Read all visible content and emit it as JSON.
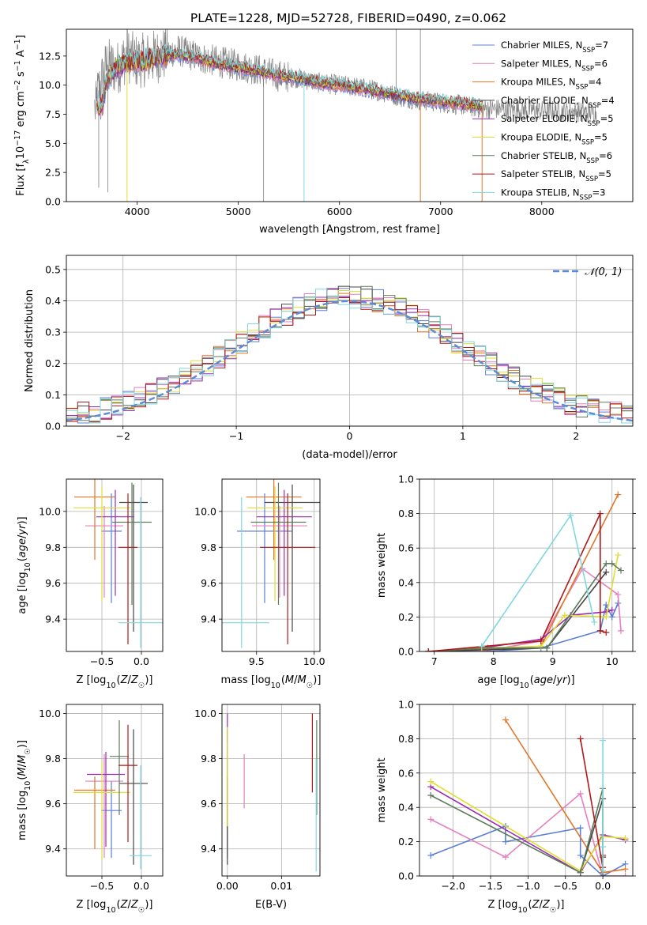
{
  "figure": {
    "title": "PLATE=1228, MJD=52728, FIBERID=0490, z=0.062"
  },
  "models": [
    {
      "name": "Chabrier MILES",
      "n_ssp": "7",
      "color": "#5b7fd6"
    },
    {
      "name": "Salpeter MILES",
      "n_ssp": "6",
      "color": "#e67fbf"
    },
    {
      "name": "Kroupa MILES",
      "n_ssp": "4",
      "color": "#e0772a"
    },
    {
      "name": "Chabrier ELODIE",
      "n_ssp": "4",
      "color": "#454545"
    },
    {
      "name": "Salpeter ELODIE",
      "n_ssp": "5",
      "color": "#9b2bb0"
    },
    {
      "name": "Kroupa ELODIE",
      "n_ssp": "5",
      "color": "#dede30"
    },
    {
      "name": "Chabrier STELIB",
      "n_ssp": "6",
      "color": "#5d7b5b"
    },
    {
      "name": "Salpeter STELIB",
      "n_ssp": "5",
      "color": "#b01818"
    },
    {
      "name": "Kroupa STELIB",
      "n_ssp": "3",
      "color": "#7fd8de"
    }
  ],
  "legend_nssp_prefix": "N",
  "legend_nssp_sub": "SSP",
  "chart_data": [
    {
      "id": "spectrum",
      "type": "line",
      "xlabel": "wavelength [Angstrom, rest frame]",
      "ylabel_parts": [
        "Flux [f",
        "λ",
        "10",
        "−17",
        " erg cm",
        "−2",
        " s",
        "−1",
        " A",
        "−1",
        "]"
      ],
      "xlim": [
        3300,
        8900
      ],
      "ylim": [
        0,
        14.8
      ],
      "xticks": [
        4000,
        5000,
        6000,
        7000,
        8000
      ],
      "yticks": [
        0.0,
        2.5,
        5.0,
        7.5,
        10.0,
        12.5
      ],
      "data_color": "#808080",
      "data_anchors": [
        [
          3600,
          9.0
        ],
        [
          3700,
          11.8
        ],
        [
          3800,
          11.4
        ],
        [
          3900,
          12.6
        ],
        [
          4000,
          12.0
        ],
        [
          4200,
          12.5
        ],
        [
          4400,
          13.0
        ],
        [
          4600,
          12.4
        ],
        [
          4800,
          12.0
        ],
        [
          5000,
          11.7
        ],
        [
          5200,
          11.3
        ],
        [
          5400,
          10.8
        ],
        [
          5600,
          10.6
        ],
        [
          5800,
          10.2
        ],
        [
          6000,
          10.0
        ],
        [
          6200,
          9.8
        ],
        [
          6400,
          9.5
        ],
        [
          6600,
          9.0
        ],
        [
          6800,
          8.7
        ],
        [
          7000,
          8.5
        ],
        [
          7200,
          8.3
        ],
        [
          7400,
          8.0
        ]
      ],
      "model_anchors": [
        [
          3600,
          8.5
        ],
        [
          3650,
          8.0
        ],
        [
          3700,
          10.5
        ],
        [
          3800,
          11.5
        ],
        [
          3900,
          12.0
        ],
        [
          4000,
          12.0
        ],
        [
          4200,
          12.4
        ],
        [
          4400,
          12.6
        ],
        [
          4600,
          12.3
        ],
        [
          4800,
          11.8
        ],
        [
          5000,
          11.5
        ],
        [
          5200,
          11.2
        ],
        [
          5400,
          10.8
        ],
        [
          5600,
          10.6
        ],
        [
          5800,
          10.2
        ],
        [
          6000,
          10.0
        ],
        [
          6200,
          9.7
        ],
        [
          6400,
          9.4
        ],
        [
          6600,
          9.1
        ],
        [
          6800,
          8.8
        ],
        [
          7000,
          8.6
        ],
        [
          7200,
          8.4
        ],
        [
          7400,
          8.2
        ]
      ],
      "data_xrange": [
        3580,
        8550
      ],
      "model_xrange": [
        3600,
        7420
      ]
    },
    {
      "id": "residual_histogram",
      "type": "histogram",
      "xlabel": "(data-model)/error",
      "ylabel": "Normed distribution",
      "xlim": [
        -2.5,
        2.5
      ],
      "ylim": [
        0,
        0.545
      ],
      "xticks": [
        -2,
        -1,
        0,
        1,
        2
      ],
      "yticks": [
        0.0,
        0.1,
        0.2,
        0.3,
        0.4,
        0.5
      ],
      "bin_edges_start": -2.5,
      "bin_width": 0.1,
      "reference_label": "𝒩(0, 1)",
      "reference_color": "#5b8ad6"
    },
    {
      "id": "age_vs_Z",
      "type": "errorbar",
      "xlabel": "Z [log10(Z/Z☉)]",
      "ylabel": "age  [log10(age/yr)]",
      "xlim": [
        -0.95,
        0.27
      ],
      "ylim": [
        9.22,
        10.18
      ],
      "xticks": [
        -0.5,
        0.0
      ],
      "yticks": [
        9.4,
        9.6,
        9.8,
        10.0
      ],
      "points": [
        {
          "model": 0,
          "x": -0.38,
          "y": 9.89,
          "xerr": [
            0.13,
            0.13
          ],
          "yerr": [
            0.4,
            0.21
          ]
        },
        {
          "model": 1,
          "x": -0.47,
          "y": 9.92,
          "xerr": [
            0.24,
            0.24
          ],
          "yerr": [
            0.4,
            0.11
          ]
        },
        {
          "model": 2,
          "x": -0.59,
          "y": 10.08,
          "xerr": [
            0.26,
            0.26
          ],
          "yerr": [
            0.35,
            0.1
          ]
        },
        {
          "model": 3,
          "x": -0.1,
          "y": 10.05,
          "xerr": [
            0.18,
            0.18
          ],
          "yerr": [
            0.72,
            0.1
          ]
        },
        {
          "model": 4,
          "x": -0.33,
          "y": 9.97,
          "xerr": [
            0.24,
            0.24
          ],
          "yerr": [
            0.44,
            0.15
          ]
        },
        {
          "model": 5,
          "x": -0.5,
          "y": 10.02,
          "xerr": [
            0.36,
            0.36
          ],
          "yerr": [
            0.52,
            0.12
          ]
        },
        {
          "model": 6,
          "x": -0.12,
          "y": 9.94,
          "xerr": [
            0.25,
            0.25
          ],
          "yerr": [
            0.46,
            0.22
          ]
        },
        {
          "model": 7,
          "x": -0.17,
          "y": 9.8,
          "xerr": [
            0.12,
            0.12
          ],
          "yerr": [
            0.54,
            0.3
          ]
        },
        {
          "model": 8,
          "x": -0.01,
          "y": 9.38,
          "xerr": [
            0.28,
            0.28
          ],
          "yerr": [
            0.14,
            0.7
          ]
        }
      ]
    },
    {
      "id": "age_vs_mass",
      "type": "errorbar",
      "xlabel": "mass [log10(M/M☉)]",
      "ylabel": "",
      "xlim": [
        9.2,
        10.05
      ],
      "ylim": [
        9.22,
        10.18
      ],
      "xticks": [
        9.5,
        10.0
      ],
      "yticks": [
        9.4,
        9.6,
        9.8,
        10.0
      ],
      "points": [
        {
          "model": 0,
          "x": 9.57,
          "y": 9.89,
          "xerr": [
            0.24,
            0.24
          ],
          "yerr": [
            0.4,
            0.21
          ]
        },
        {
          "model": 1,
          "x": 9.7,
          "y": 9.92,
          "xerr": [
            0.24,
            0.24
          ],
          "yerr": [
            0.4,
            0.11
          ]
        },
        {
          "model": 2,
          "x": 9.65,
          "y": 10.08,
          "xerr": [
            0.24,
            0.24
          ],
          "yerr": [
            0.35,
            0.1
          ]
        },
        {
          "model": 3,
          "x": 9.81,
          "y": 10.05,
          "xerr": [
            0.24,
            0.24
          ],
          "yerr": [
            0.72,
            0.1
          ]
        },
        {
          "model": 4,
          "x": 9.74,
          "y": 9.97,
          "xerr": [
            0.24,
            0.24
          ],
          "yerr": [
            0.44,
            0.15
          ]
        },
        {
          "model": 5,
          "x": 9.66,
          "y": 10.02,
          "xerr": [
            0.24,
            0.24
          ],
          "yerr": [
            0.52,
            0.12
          ]
        },
        {
          "model": 6,
          "x": 9.69,
          "y": 9.94,
          "xerr": [
            0.24,
            0.24
          ],
          "yerr": [
            0.46,
            0.22
          ]
        },
        {
          "model": 7,
          "x": 9.77,
          "y": 9.8,
          "xerr": [
            0.24,
            0.24
          ],
          "yerr": [
            0.54,
            0.3
          ]
        },
        {
          "model": 8,
          "x": 9.37,
          "y": 9.38,
          "xerr": [
            0.24,
            0.24
          ],
          "yerr": [
            0.14,
            0.7
          ]
        }
      ]
    },
    {
      "id": "massweight_vs_age",
      "type": "line",
      "xlabel": "age  [log10(age/yr)]",
      "ylabel": "mass weight",
      "xlim": [
        6.75,
        10.35
      ],
      "ylim": [
        0,
        1.0
      ],
      "xticks": [
        7,
        8,
        9,
        10
      ],
      "yticks": [
        0.0,
        0.2,
        0.4,
        0.6,
        0.8,
        1.0
      ],
      "series": [
        {
          "model": 0,
          "x": [
            6.9,
            7.9,
            8.8,
            9.8,
            9.9,
            10.0,
            10.1
          ],
          "y": [
            0.0,
            0.0,
            0.02,
            0.12,
            0.27,
            0.2,
            0.28
          ]
        },
        {
          "model": 1,
          "x": [
            6.9,
            7.8,
            8.8,
            9.5,
            10.1,
            10.15
          ],
          "y": [
            0.0,
            0.0,
            0.06,
            0.48,
            0.33,
            0.12
          ]
        },
        {
          "model": 2,
          "x": [
            6.9,
            8.8,
            10.1
          ],
          "y": [
            0.0,
            0.03,
            0.91
          ]
        },
        {
          "model": 3,
          "x": [
            6.9,
            8.9,
            9.9
          ],
          "y": [
            0.0,
            0.02,
            0.46
          ]
        },
        {
          "model": 4,
          "x": [
            6.9,
            7.8,
            8.8,
            9.3,
            9.9,
            10.0
          ],
          "y": [
            0.0,
            0.02,
            0.07,
            0.21,
            0.23,
            0.24
          ]
        },
        {
          "model": 5,
          "x": [
            6.9,
            7.8,
            8.8,
            9.2,
            9.9,
            10.1
          ],
          "y": [
            0.0,
            0.02,
            0.03,
            0.21,
            0.2,
            0.56
          ]
        },
        {
          "model": 6,
          "x": [
            6.9,
            7.9,
            8.9,
            9.9,
            10.0,
            10.15
          ],
          "y": [
            0.0,
            0.02,
            0.02,
            0.51,
            0.51,
            0.47
          ]
        },
        {
          "model": 7,
          "x": [
            6.9,
            8.8,
            9.8,
            9.8,
            9.9
          ],
          "y": [
            0.0,
            0.06,
            0.8,
            0.12,
            0.11
          ]
        },
        {
          "model": 8,
          "x": [
            7.8,
            9.3,
            9.7
          ],
          "y": [
            0.03,
            0.79,
            0.17
          ]
        }
      ]
    },
    {
      "id": "mass_vs_Z",
      "type": "errorbar",
      "xlabel": "Z [log10(Z/Z☉)]",
      "ylabel": "mass [log10(M/M☉)]",
      "xlim": [
        -0.95,
        0.27
      ],
      "ylim": [
        9.28,
        10.04
      ],
      "xticks": [
        -0.5,
        0.0
      ],
      "yticks": [
        9.4,
        9.6,
        9.8,
        10.0
      ],
      "points": [
        {
          "model": 0,
          "x": -0.38,
          "y": 9.57,
          "xerr": [
            0.13,
            0.13
          ],
          "yerr": [
            0.21,
            0.13
          ]
        },
        {
          "model": 1,
          "x": -0.47,
          "y": 9.7,
          "xerr": [
            0.24,
            0.24
          ],
          "yerr": [
            0.34,
            0.12
          ]
        },
        {
          "model": 2,
          "x": -0.59,
          "y": 9.66,
          "xerr": [
            0.26,
            0.26
          ],
          "yerr": [
            0.26,
            0.06
          ]
        },
        {
          "model": 3,
          "x": -0.1,
          "y": 9.69,
          "xerr": [
            0.18,
            0.18
          ],
          "yerr": [
            0.36,
            0.24
          ]
        },
        {
          "model": 4,
          "x": -0.45,
          "y": 9.73,
          "xerr": [
            0.24,
            0.24
          ],
          "yerr": [
            0.32,
            0.1
          ]
        },
        {
          "model": 5,
          "x": -0.5,
          "y": 9.65,
          "xerr": [
            0.36,
            0.36
          ],
          "yerr": [
            0.3,
            0.14
          ]
        },
        {
          "model": 6,
          "x": -0.28,
          "y": 9.81,
          "xerr": [
            0.12,
            0.12
          ],
          "yerr": [
            0.26,
            0.16
          ]
        },
        {
          "model": 7,
          "x": -0.17,
          "y": 9.77,
          "xerr": [
            0.12,
            0.12
          ],
          "yerr": [
            0.34,
            0.18
          ]
        },
        {
          "model": 8,
          "x": -0.01,
          "y": 9.37,
          "xerr": [
            0.14,
            0.14
          ],
          "yerr": [
            0.06,
            0.4
          ]
        }
      ]
    },
    {
      "id": "mass_vs_EBV",
      "type": "errorbar",
      "xlabel": "E(B-V)",
      "ylabel": "",
      "xlim": [
        -0.001,
        0.0171
      ],
      "ylim": [
        9.28,
        10.04
      ],
      "xticks": [
        0.0,
        0.01
      ],
      "yticks": [
        9.4,
        9.6,
        9.8,
        10.0
      ],
      "points": [
        {
          "model": 0,
          "x": 0.0,
          "y": 9.57,
          "xerr": [
            0,
            0
          ],
          "yerr": [
            0.21,
            0.13
          ]
        },
        {
          "model": 1,
          "x": 0.0031,
          "y": 9.7,
          "xerr": [
            0,
            0
          ],
          "yerr": [
            0.12,
            0.12
          ]
        },
        {
          "model": 2,
          "x": 0.0,
          "y": 9.66,
          "xerr": [
            0,
            0
          ],
          "yerr": [
            0.26,
            0.06
          ]
        },
        {
          "model": 3,
          "x": 0.0,
          "y": 9.69,
          "xerr": [
            0,
            0
          ],
          "yerr": [
            0.36,
            0.24
          ]
        },
        {
          "model": 4,
          "x": 0.0,
          "y": 9.93,
          "xerr": [
            0,
            0
          ],
          "yerr": [
            0.06,
            0.07
          ]
        },
        {
          "model": 5,
          "x": 0.0,
          "y": 9.8,
          "xerr": [
            0,
            0
          ],
          "yerr": [
            0.3,
            0.14
          ]
        },
        {
          "model": 6,
          "x": 0.0165,
          "y": 9.81,
          "xerr": [
            0,
            0
          ],
          "yerr": [
            0.26,
            0.16
          ]
        },
        {
          "model": 7,
          "x": 0.0157,
          "y": 9.85,
          "xerr": [
            0,
            0
          ],
          "yerr": [
            0.2,
            0.15
          ]
        },
        {
          "model": 8,
          "x": 0.0164,
          "y": 9.55,
          "xerr": [
            0,
            0
          ],
          "yerr": [
            0.25,
            0.25
          ]
        }
      ]
    },
    {
      "id": "massweight_vs_Z",
      "type": "line",
      "xlabel": "Z [log10(Z/Z☉)]",
      "ylabel": "mass weight",
      "xlim": [
        -2.45,
        0.4
      ],
      "ylim": [
        0,
        1.0
      ],
      "xticks": [
        -2.0,
        -1.5,
        -1.0,
        -0.5,
        0.0
      ],
      "yticks": [
        0.0,
        0.2,
        0.4,
        0.6,
        0.8,
        1.0
      ],
      "series": [
        {
          "model": 0,
          "x": [
            -2.3,
            -1.3,
            -1.3,
            -0.3,
            -0.3,
            0.0,
            0.3
          ],
          "y": [
            0.12,
            0.29,
            0.2,
            0.28,
            0.12,
            0.0,
            0.07
          ]
        },
        {
          "model": 1,
          "x": [
            -2.3,
            -1.3,
            -0.3,
            0.0,
            0.3
          ],
          "y": [
            0.33,
            0.11,
            0.48,
            0.0,
            0.0
          ]
        },
        {
          "model": 2,
          "x": [
            -1.3,
            0.0,
            0.3
          ],
          "y": [
            0.91,
            0.02,
            0.04
          ]
        },
        {
          "model": 3,
          "x": [
            -0.3,
            0.0,
            0.0
          ],
          "y": [
            0.02,
            0.45,
            0.11
          ]
        },
        {
          "model": 4,
          "x": [
            -2.3,
            -0.3,
            0.0,
            0.3
          ],
          "y": [
            0.52,
            0.02,
            0.24,
            0.21
          ]
        },
        {
          "model": 5,
          "x": [
            -2.3,
            -0.3,
            0.0,
            0.3
          ],
          "y": [
            0.55,
            0.03,
            0.23,
            0.22
          ]
        },
        {
          "model": 6,
          "x": [
            -2.3,
            -0.3,
            0.0,
            0.0
          ],
          "y": [
            0.47,
            0.02,
            0.51,
            0.0
          ]
        },
        {
          "model": 7,
          "x": [
            -0.3,
            0.0,
            0.0
          ],
          "y": [
            0.8,
            0.05,
            0.12
          ]
        },
        {
          "model": 8,
          "x": [
            0.0,
            0.0,
            0.0
          ],
          "y": [
            0.79,
            0.17,
            0.03
          ]
        }
      ]
    }
  ]
}
